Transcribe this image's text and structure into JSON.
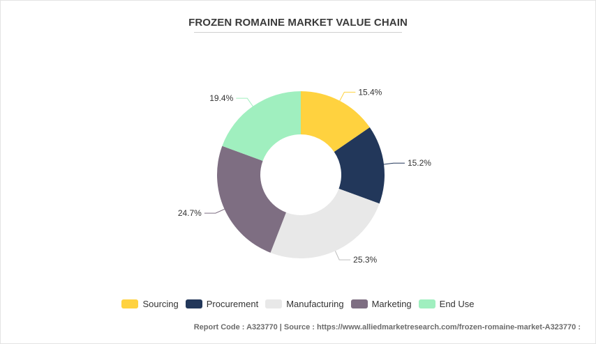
{
  "chart_data": {
    "type": "pie",
    "variant": "donut",
    "title": "FROZEN ROMAINE MARKET VALUE CHAIN",
    "legend_position": "bottom",
    "slices": [
      {
        "label": "Sourcing",
        "value": 15.4,
        "value_label": "15.4%",
        "color": "#FFD23F"
      },
      {
        "label": "Procurement",
        "value": 15.2,
        "value_label": "15.2%",
        "color": "#22375A"
      },
      {
        "label": "Manufacturing",
        "value": 25.3,
        "value_label": "25.3%",
        "color": "#E8E8E8"
      },
      {
        "label": "Marketing",
        "value": 24.7,
        "value_label": "24.7%",
        "color": "#7E6E82"
      },
      {
        "label": "End Use",
        "value": 19.4,
        "value_label": "19.4%",
        "color": "#A0EFBF"
      }
    ]
  },
  "footer": {
    "text": "Report Code : A323770  |  Source : https://www.alliedmarketresearch.com/frozen-romaine-market-A323770 :"
  }
}
